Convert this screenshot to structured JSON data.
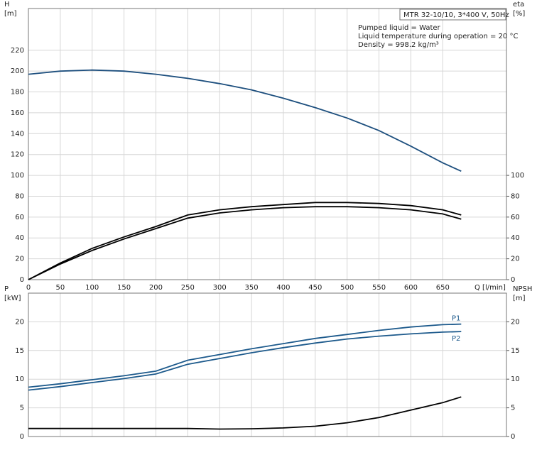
{
  "chart_data": [
    {
      "type": "line",
      "info": [
        "MTR 32-10/10, 3*400 V, 50Hz",
        "Pumped liquid = Water",
        "Liquid temperature during operation = 20 °C",
        "Density = 998.2 kg/m³"
      ],
      "ylabel": [
        "H",
        "[m]"
      ],
      "y2label": [
        "eta",
        "[%]"
      ],
      "xlabel": "Q [l/min]",
      "x": [
        0,
        50,
        100,
        150,
        200,
        250,
        300,
        350,
        400,
        450,
        500,
        550,
        600,
        650,
        679
      ],
      "xlim": [
        0,
        750
      ],
      "xticks": [
        0,
        50,
        100,
        150,
        200,
        250,
        300,
        350,
        400,
        450,
        500,
        550,
        600,
        650
      ],
      "ylim": [
        0,
        260
      ],
      "yticks": [
        0,
        20,
        40,
        60,
        80,
        100,
        120,
        140,
        160,
        180,
        200,
        220
      ],
      "y2lim": [
        0,
        260
      ],
      "y2ticks": [
        0,
        20,
        40,
        60,
        80,
        100
      ],
      "grid": true,
      "series": [
        {
          "color": "#1d4f7e",
          "values": [
            197,
            200,
            201,
            200,
            197,
            193,
            188,
            182,
            174,
            165,
            155,
            143,
            128,
            112,
            104
          ]
        },
        {
          "color": "#000000",
          "axis": "y2",
          "values": [
            0,
            16,
            30,
            41,
            51,
            62,
            67,
            70,
            72,
            74,
            74,
            73,
            71,
            67,
            62
          ]
        },
        {
          "color": "#000000",
          "axis": "y2",
          "values": [
            0,
            15,
            28,
            39,
            49,
            59,
            64,
            67,
            69,
            70,
            70,
            69,
            67,
            63,
            58
          ]
        }
      ]
    },
    {
      "type": "line",
      "ylabel": [
        "P",
        "[kW]"
      ],
      "y2label": [
        "NPSH",
        "[m]"
      ],
      "x": [
        0,
        50,
        100,
        150,
        200,
        250,
        300,
        350,
        400,
        450,
        500,
        550,
        600,
        650,
        679
      ],
      "xlim": [
        0,
        750
      ],
      "ylim": [
        0,
        25
      ],
      "yticks": [
        0,
        5,
        10,
        15,
        20
      ],
      "y2lim": [
        0,
        25
      ],
      "y2ticks": [
        0,
        5,
        10,
        15,
        20
      ],
      "grid": true,
      "series": [
        {
          "name": "P1",
          "color": "#1d5a8c",
          "values": [
            8.6,
            9.2,
            9.9,
            10.6,
            11.4,
            13.3,
            14.3,
            15.3,
            16.2,
            17.1,
            17.8,
            18.5,
            19.1,
            19.5,
            19.6
          ]
        },
        {
          "name": "P2",
          "color": "#1d5a8c",
          "values": [
            8.1,
            8.7,
            9.4,
            10.1,
            10.9,
            12.6,
            13.6,
            14.6,
            15.5,
            16.3,
            17.0,
            17.5,
            17.9,
            18.2,
            18.3
          ]
        },
        {
          "color": "#000000",
          "axis": "y2",
          "values": [
            1.4,
            1.4,
            1.4,
            1.4,
            1.4,
            1.4,
            1.3,
            1.35,
            1.5,
            1.8,
            2.4,
            3.3,
            4.6,
            5.9,
            6.9
          ]
        }
      ]
    }
  ]
}
